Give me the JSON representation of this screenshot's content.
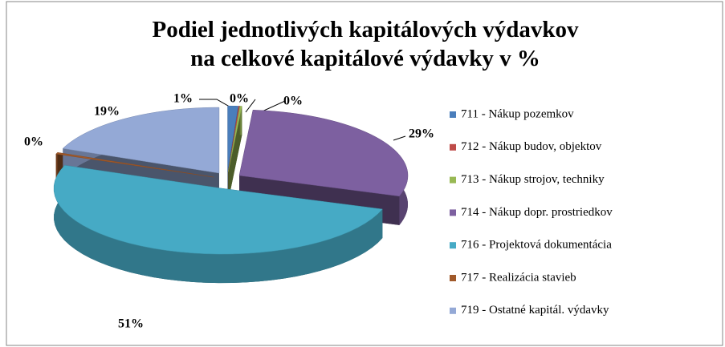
{
  "chart_data": {
    "type": "pie3d",
    "title": "Podiel jednotlivých kapitálových výdavkov",
    "subtitle": "na celkové kapitálové výdavky v %",
    "categories": [
      "711 - Nákup pozemkov",
      "712 - Nákup budov, objektov",
      "713 - Nákup strojov, techniky",
      "714 - Nákup dopr. prostriedkov",
      "716 - Projektová dokumentácia",
      "717 - Realizácia stavieb",
      "719 - Ostatné kapitál. výdavky"
    ],
    "values": [
      1,
      0.1,
      0.2,
      29,
      51,
      0.4,
      19
    ],
    "value_labels": [
      "1%",
      "0%",
      "0%",
      "29%",
      "51%",
      "0%",
      "19%"
    ],
    "colors": [
      "#4a7ebb",
      "#be4b48",
      "#98b954",
      "#7d60a0",
      "#46aac5",
      "#a0592a",
      "#94a9d6"
    ],
    "legend": "right"
  }
}
